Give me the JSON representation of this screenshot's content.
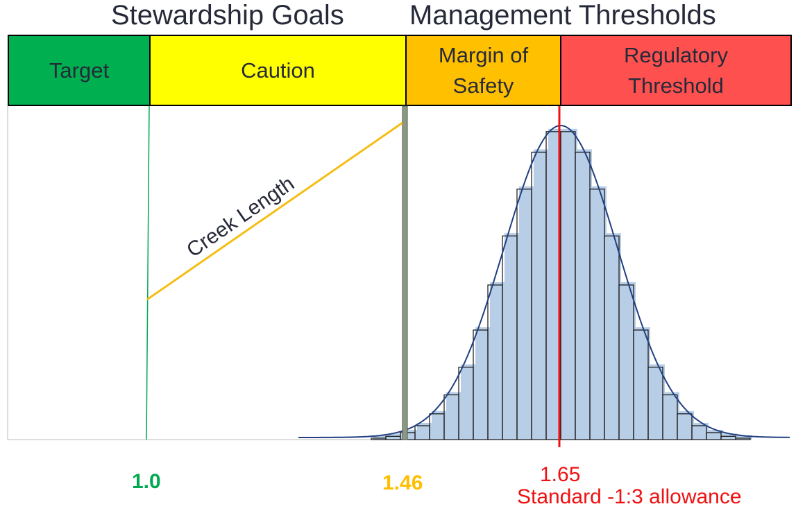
{
  "headings": {
    "left": "Stewardship Goals",
    "right": "Management Thresholds"
  },
  "bands": [
    {
      "label": "Target",
      "color": "#00b050"
    },
    {
      "label": "Caution",
      "color": "#ffff00"
    },
    {
      "label": "Margin of\nSafety",
      "color": "#ffc000"
    },
    {
      "label": "Regulatory\nThreshold",
      "color": "#ff5050"
    }
  ],
  "lines": {
    "target_value": "1.0",
    "margin_value": "1.46",
    "regulatory_value": "1.65",
    "regulatory_note": "Standard -1:3 allowance",
    "trend_label": "Creek Length"
  },
  "colors": {
    "target": "#00a94f",
    "margin": "#ffbf00",
    "regulatory": "#ee1111",
    "histogram_fill": "#b8cde6",
    "curve": "#1f3f80"
  }
}
